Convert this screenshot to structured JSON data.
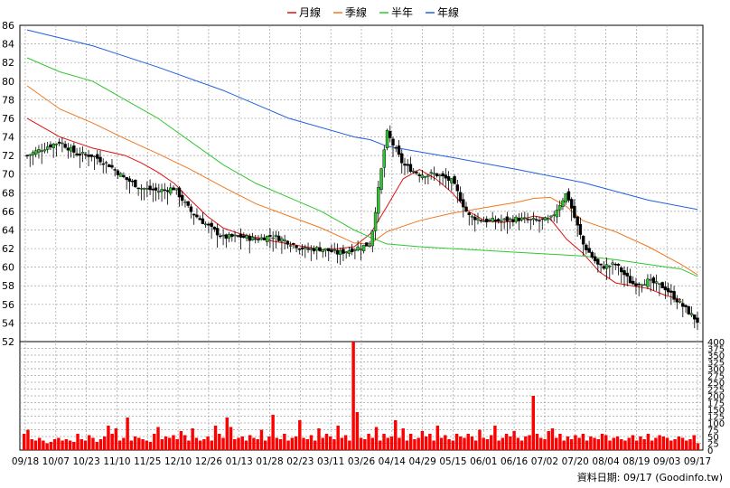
{
  "chart_data": {
    "type": "candlestick",
    "legend": {
      "placement": "top-center",
      "entries": [
        {
          "label": "月線",
          "color": "#e01010"
        },
        {
          "label": "季線",
          "color": "#f07820"
        },
        {
          "label": "半年",
          "color": "#30c830"
        },
        {
          "label": "年線",
          "color": "#2060e0"
        }
      ]
    },
    "price_axis": {
      "min": 52,
      "max": 86,
      "step": 2,
      "ticks": [
        52,
        54,
        56,
        58,
        60,
        62,
        64,
        66,
        68,
        70,
        72,
        74,
        76,
        78,
        80,
        82,
        84,
        86
      ]
    },
    "volume_axis": {
      "min": 0,
      "max": 400,
      "step": 25,
      "ticks": [
        0,
        25,
        50,
        75,
        100,
        125,
        150,
        175,
        200,
        225,
        250,
        275,
        300,
        325,
        350,
        375,
        400
      ]
    },
    "x_tick_labels": [
      "09/18",
      "10/07",
      "10/23",
      "11/10",
      "11/25",
      "12/10",
      "12/26",
      "01/13",
      "01/28",
      "02/23",
      "03/11",
      "03/26",
      "04/14",
      "04/29",
      "05/15",
      "06/01",
      "06/16",
      "07/02",
      "07/20",
      "08/04",
      "08/19",
      "09/03",
      "09/17"
    ],
    "grid": true,
    "ma_lines": {
      "月線": [
        [
          0,
          76
        ],
        [
          1,
          75
        ],
        [
          2,
          74
        ],
        [
          3,
          73.4
        ],
        [
          4,
          72.8
        ],
        [
          5,
          72.4
        ],
        [
          6,
          72.0
        ],
        [
          7,
          71.2
        ],
        [
          8,
          70.2
        ],
        [
          9,
          69.0
        ],
        [
          10,
          67.2
        ],
        [
          11,
          65.5
        ],
        [
          12,
          64.2
        ],
        [
          13,
          63.6
        ],
        [
          14,
          63.2
        ],
        [
          15,
          62.8
        ],
        [
          16,
          62.5
        ],
        [
          17,
          62.2
        ],
        [
          18,
          61.9
        ],
        [
          19,
          62.0
        ],
        [
          20,
          62.2
        ],
        [
          21,
          63.6
        ],
        [
          22,
          66.5
        ],
        [
          23,
          69.5
        ],
        [
          24,
          70.5
        ],
        [
          25,
          69.5
        ],
        [
          26,
          68
        ],
        [
          27,
          66
        ],
        [
          28,
          65
        ],
        [
          29,
          64.8
        ],
        [
          30,
          65
        ],
        [
          31,
          65.5
        ],
        [
          32,
          65.2
        ],
        [
          33,
          63
        ],
        [
          34,
          61.5
        ],
        [
          35,
          59.5
        ],
        [
          36,
          58.3
        ],
        [
          37,
          58.0
        ],
        [
          38,
          57.7
        ],
        [
          39,
          57.0
        ],
        [
          40,
          56.5
        ]
      ],
      "季線": [
        [
          0,
          79.5
        ],
        [
          2,
          77
        ],
        [
          4,
          75.5
        ],
        [
          6,
          73.8
        ],
        [
          8,
          72.2
        ],
        [
          10,
          70.5
        ],
        [
          12,
          68.6
        ],
        [
          14,
          66.8
        ],
        [
          16,
          65.5
        ],
        [
          18,
          64.2
        ],
        [
          20,
          62.6
        ],
        [
          21,
          62.5
        ],
        [
          22,
          63.8
        ],
        [
          24,
          65
        ],
        [
          26,
          65.8
        ],
        [
          28,
          66.4
        ],
        [
          30,
          67
        ],
        [
          31,
          67.4
        ],
        [
          32,
          67.5
        ],
        [
          33,
          66.5
        ],
        [
          34,
          65
        ],
        [
          36,
          63.8
        ],
        [
          38,
          62.2
        ],
        [
          40,
          60.3
        ],
        [
          41,
          59.2
        ]
      ],
      "半年": [
        [
          0,
          82.5
        ],
        [
          2,
          81
        ],
        [
          4,
          80
        ],
        [
          6,
          78
        ],
        [
          8,
          76
        ],
        [
          10,
          73.5
        ],
        [
          12,
          71
        ],
        [
          14,
          69
        ],
        [
          16,
          67.5
        ],
        [
          18,
          66
        ],
        [
          20,
          64
        ],
        [
          21,
          63.2
        ],
        [
          22,
          62.5
        ],
        [
          24,
          62.2
        ],
        [
          26,
          62
        ],
        [
          28,
          61.8
        ],
        [
          30,
          61.6
        ],
        [
          32,
          61.4
        ],
        [
          34,
          61.2
        ],
        [
          36,
          60.8
        ],
        [
          38,
          60.3
        ],
        [
          40,
          59.8
        ],
        [
          41,
          59
        ]
      ],
      "年線": [
        [
          0,
          85.5
        ],
        [
          4,
          83.8
        ],
        [
          8,
          81.5
        ],
        [
          12,
          79
        ],
        [
          16,
          76
        ],
        [
          20,
          74
        ],
        [
          21,
          73.7
        ],
        [
          22,
          73
        ],
        [
          26,
          71.8
        ],
        [
          30,
          70.5
        ],
        [
          34,
          69.1
        ],
        [
          38,
          67.2
        ],
        [
          41,
          66.2
        ]
      ]
    },
    "candles_summary": "daily candlesticks with close path following price from ~72 (09/18) down to ~62 (03/11), spike to ~74.5 (03/26), ~70 (04/14), ~65 (05/15-06/16), spike ~68 (07/02), then decline to ~54 (09/17)",
    "close_path": [
      [
        0,
        72
      ],
      [
        1,
        72.8
      ],
      [
        2,
        73.5
      ],
      [
        3,
        72.2
      ],
      [
        4,
        72
      ],
      [
        5,
        71
      ],
      [
        6,
        69.5
      ],
      [
        7,
        68.5
      ],
      [
        8,
        68.2
      ],
      [
        9,
        68.5
      ],
      [
        10,
        66
      ],
      [
        11,
        64.5
      ],
      [
        12,
        63.2
      ],
      [
        13,
        63.3
      ],
      [
        14,
        63
      ],
      [
        15,
        63.4
      ],
      [
        16,
        62.7
      ],
      [
        17,
        61.9
      ],
      [
        18,
        62
      ],
      [
        19,
        61.5
      ],
      [
        20,
        62
      ],
      [
        21,
        62.5
      ],
      [
        22,
        74.5
      ],
      [
        23,
        71
      ],
      [
        24,
        70
      ],
      [
        25,
        70
      ],
      [
        26,
        69.2
      ],
      [
        27,
        65.5
      ],
      [
        28,
        65
      ],
      [
        29,
        65
      ],
      [
        30,
        65.2
      ],
      [
        31,
        65
      ],
      [
        32,
        65.1
      ],
      [
        33,
        68
      ],
      [
        34,
        62.5
      ],
      [
        35,
        60
      ],
      [
        36,
        60.3
      ],
      [
        37,
        58.2
      ],
      [
        38,
        58.5
      ],
      [
        39,
        57.8
      ],
      [
        40,
        56
      ],
      [
        41,
        54.2
      ]
    ],
    "volumes": [
      60,
      75,
      40,
      35,
      45,
      35,
      25,
      30,
      40,
      45,
      35,
      40,
      35,
      30,
      60,
      40,
      35,
      55,
      45,
      30,
      40,
      50,
      90,
      60,
      80,
      35,
      45,
      120,
      35,
      50,
      45,
      40,
      35,
      30,
      60,
      85,
      40,
      50,
      45,
      55,
      40,
      70,
      55,
      35,
      80,
      45,
      35,
      40,
      50,
      35,
      90,
      60,
      45,
      120,
      85,
      40,
      45,
      50,
      35,
      55,
      45,
      40,
      75,
      35,
      50,
      130,
      45,
      40,
      60,
      35,
      45,
      50,
      110,
      45,
      40,
      55,
      35,
      80,
      45,
      60,
      50,
      40,
      90,
      45,
      55,
      35,
      410,
      140,
      45,
      40,
      60,
      45,
      85,
      35,
      60,
      45,
      50,
      110,
      45,
      80,
      35,
      60,
      40,
      45,
      70,
      50,
      60,
      35,
      90,
      45,
      55,
      40,
      35,
      60,
      50,
      45,
      60,
      50,
      35,
      75,
      45,
      40,
      55,
      90,
      35,
      45,
      60,
      50,
      70,
      45,
      35,
      50,
      55,
      200,
      60,
      45,
      40,
      70,
      80,
      45,
      60,
      35,
      50,
      40,
      55,
      45,
      60,
      35,
      50,
      45,
      40,
      60,
      55,
      35,
      45,
      50,
      40,
      35,
      45,
      55,
      35,
      50,
      40,
      60,
      35,
      45,
      55,
      50,
      45,
      35,
      40,
      50,
      45,
      35,
      40,
      55,
      25
    ],
    "footer_note": "資料日期: 09/17 (Goodinfo.tw)"
  }
}
